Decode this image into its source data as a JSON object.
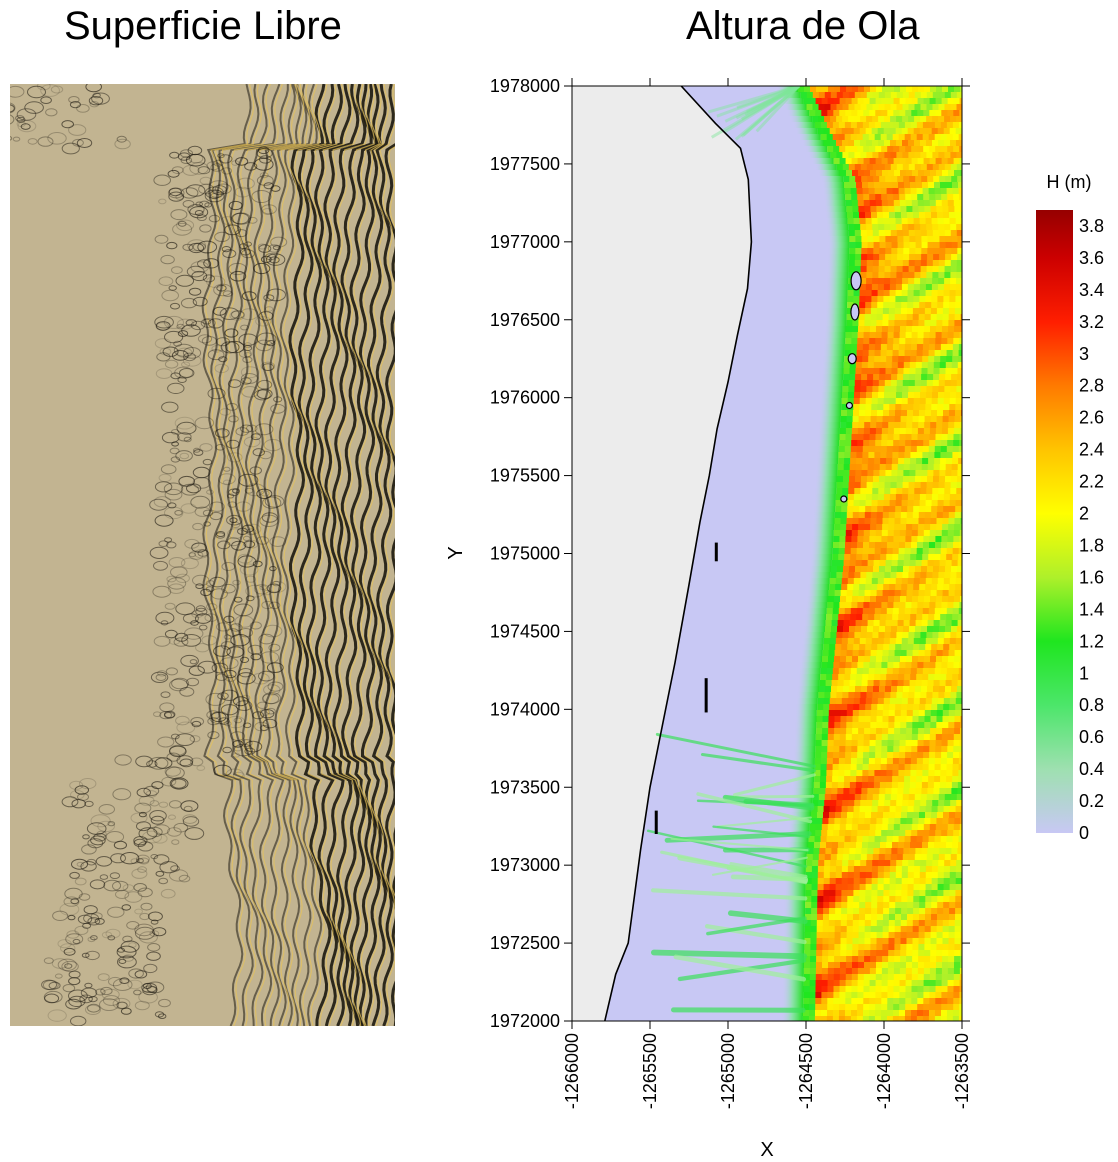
{
  "titles": {
    "left": "Superficie Libre",
    "right": "Altura de Ola"
  },
  "colors": {
    "sand": "#c2b491",
    "land": "#ececec",
    "still_water": "#c8c8f4",
    "crest_dark": "#1c1810",
    "crest_light": "#e6c25a"
  },
  "chart_data": [
    {
      "type": "heatmap",
      "title": "Superficie Libre",
      "xlabel": "",
      "ylabel": "",
      "grid": false,
      "legend": "none",
      "description_visible": "free-surface shaded relief, no axes"
    },
    {
      "type": "heatmap",
      "title": "Altura de Ola",
      "xlabel": "X",
      "ylabel": "Y",
      "xlim": [
        -1266000,
        -1263500
      ],
      "ylim": [
        1972000,
        1978000
      ],
      "x_ticks": [
        -1266000,
        -1265500,
        -1265000,
        -1264500,
        -1264000,
        -1263500
      ],
      "x_tick_labels": [
        "-1266000",
        "-1265500",
        "-1265000",
        "-1264500",
        "-1264000",
        "-1263500"
      ],
      "y_ticks": [
        1972000,
        1972500,
        1973000,
        1973500,
        1974000,
        1974500,
        1975000,
        1975500,
        1976000,
        1976500,
        1977000,
        1977500,
        1978000
      ],
      "y_tick_labels": [
        "1972000",
        "1972500",
        "1973000",
        "1973500",
        "1974000",
        "1974500",
        "1975000",
        "1975500",
        "1976000",
        "1976500",
        "1977000",
        "1977500",
        "1978000"
      ],
      "grid": false,
      "colorbar": {
        "title": "H (m)",
        "min": 0,
        "max": 3.9,
        "labels": [
          "3.8",
          "3.6",
          "3.4",
          "3.2",
          "3",
          "2.8",
          "2.6",
          "2.4",
          "2.2",
          "2",
          "1.8",
          "1.6",
          "1.4",
          "1.2",
          "1",
          "0.8",
          "0.6",
          "0.4",
          "0.2",
          "0"
        ],
        "label_values": [
          3.8,
          3.6,
          3.4,
          3.2,
          3.0,
          2.8,
          2.6,
          2.4,
          2.2,
          2.0,
          1.8,
          1.6,
          1.4,
          1.2,
          1.0,
          0.8,
          0.6,
          0.4,
          0.2,
          0
        ],
        "stops": [
          {
            "value": 0,
            "color": "#c8c8f4"
          },
          {
            "value": 0.4,
            "color": "#9ee0b0"
          },
          {
            "value": 0.8,
            "color": "#4ce66a"
          },
          {
            "value": 1.2,
            "color": "#1fe61f"
          },
          {
            "value": 1.6,
            "color": "#aef02a"
          },
          {
            "value": 2.0,
            "color": "#ffff00"
          },
          {
            "value": 2.4,
            "color": "#ffc400"
          },
          {
            "value": 2.8,
            "color": "#ff7a00"
          },
          {
            "value": 3.2,
            "color": "#ff1e00"
          },
          {
            "value": 3.6,
            "color": "#cc0000"
          },
          {
            "value": 3.9,
            "color": "#960000"
          }
        ]
      },
      "shoreline": [
        [
          -1265300,
          1978000
        ],
        [
          -1265080,
          1977760
        ],
        [
          -1264920,
          1977600
        ],
        [
          -1264870,
          1977400
        ],
        [
          -1264860,
          1977200
        ],
        [
          -1264850,
          1977000
        ],
        [
          -1264875,
          1976700
        ],
        [
          -1264940,
          1976400
        ],
        [
          -1265000,
          1976100
        ],
        [
          -1265070,
          1975800
        ],
        [
          -1265120,
          1975500
        ],
        [
          -1265180,
          1975200
        ],
        [
          -1265250,
          1974800
        ],
        [
          -1265340,
          1974300
        ],
        [
          -1265420,
          1973900
        ],
        [
          -1265500,
          1973500
        ],
        [
          -1265560,
          1973100
        ],
        [
          -1265600,
          1972800
        ],
        [
          -1265640,
          1972500
        ],
        [
          -1265720,
          1972300
        ],
        [
          -1265790,
          1972000
        ]
      ],
      "surf_front": [
        [
          -1264560,
          1978000
        ],
        [
          -1264420,
          1977700
        ],
        [
          -1264260,
          1977400
        ],
        [
          -1264220,
          1977000
        ],
        [
          -1264240,
          1976500
        ],
        [
          -1264270,
          1976000
        ],
        [
          -1264300,
          1975500
        ],
        [
          -1264330,
          1975000
        ],
        [
          -1264380,
          1974500
        ],
        [
          -1264430,
          1974000
        ],
        [
          -1264450,
          1973500
        ],
        [
          -1264500,
          1973000
        ],
        [
          -1264510,
          1972500
        ],
        [
          -1264520,
          1972000
        ]
      ],
      "structures": [
        {
          "x": -1265075,
          "y1": 1975070,
          "y2": 1974950
        },
        {
          "x": -1265140,
          "y1": 1974200,
          "y2": 1973980
        },
        {
          "x": -1265460,
          "y1": 1973350,
          "y2": 1973200
        }
      ]
    }
  ]
}
